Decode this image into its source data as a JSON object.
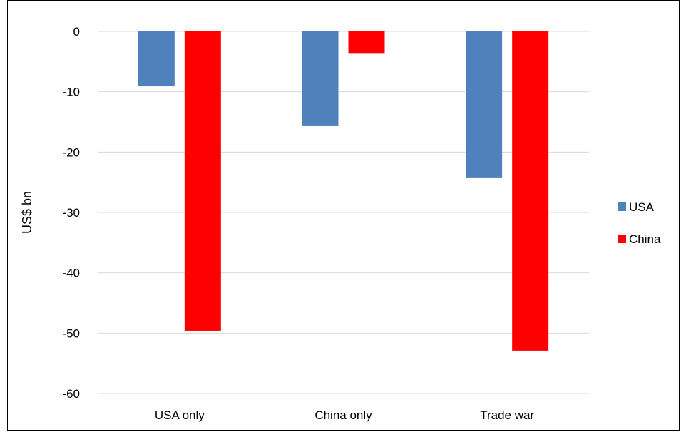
{
  "chart_data": {
    "type": "bar",
    "categories": [
      "USA only",
      "China only",
      "Trade war"
    ],
    "series": [
      {
        "name": "USA",
        "values": [
          -9.1,
          -15.7,
          -24.2
        ],
        "color": "#4f81bd"
      },
      {
        "name": "China",
        "values": [
          -49.6,
          -3.7,
          -52.9
        ],
        "color": "#ff0000"
      }
    ],
    "ylabel": "US$ bn",
    "xlabel": "",
    "ylim": [
      -60,
      0
    ],
    "yticks": [
      0,
      -10,
      -20,
      -30,
      -40,
      -50,
      -60
    ],
    "ytick_labels": [
      "0",
      "-10",
      "-20",
      "-30",
      "-40",
      "-50",
      "-60"
    ],
    "grid": true,
    "legend_position": "right",
    "gridline_color": "#d9d9d9"
  }
}
